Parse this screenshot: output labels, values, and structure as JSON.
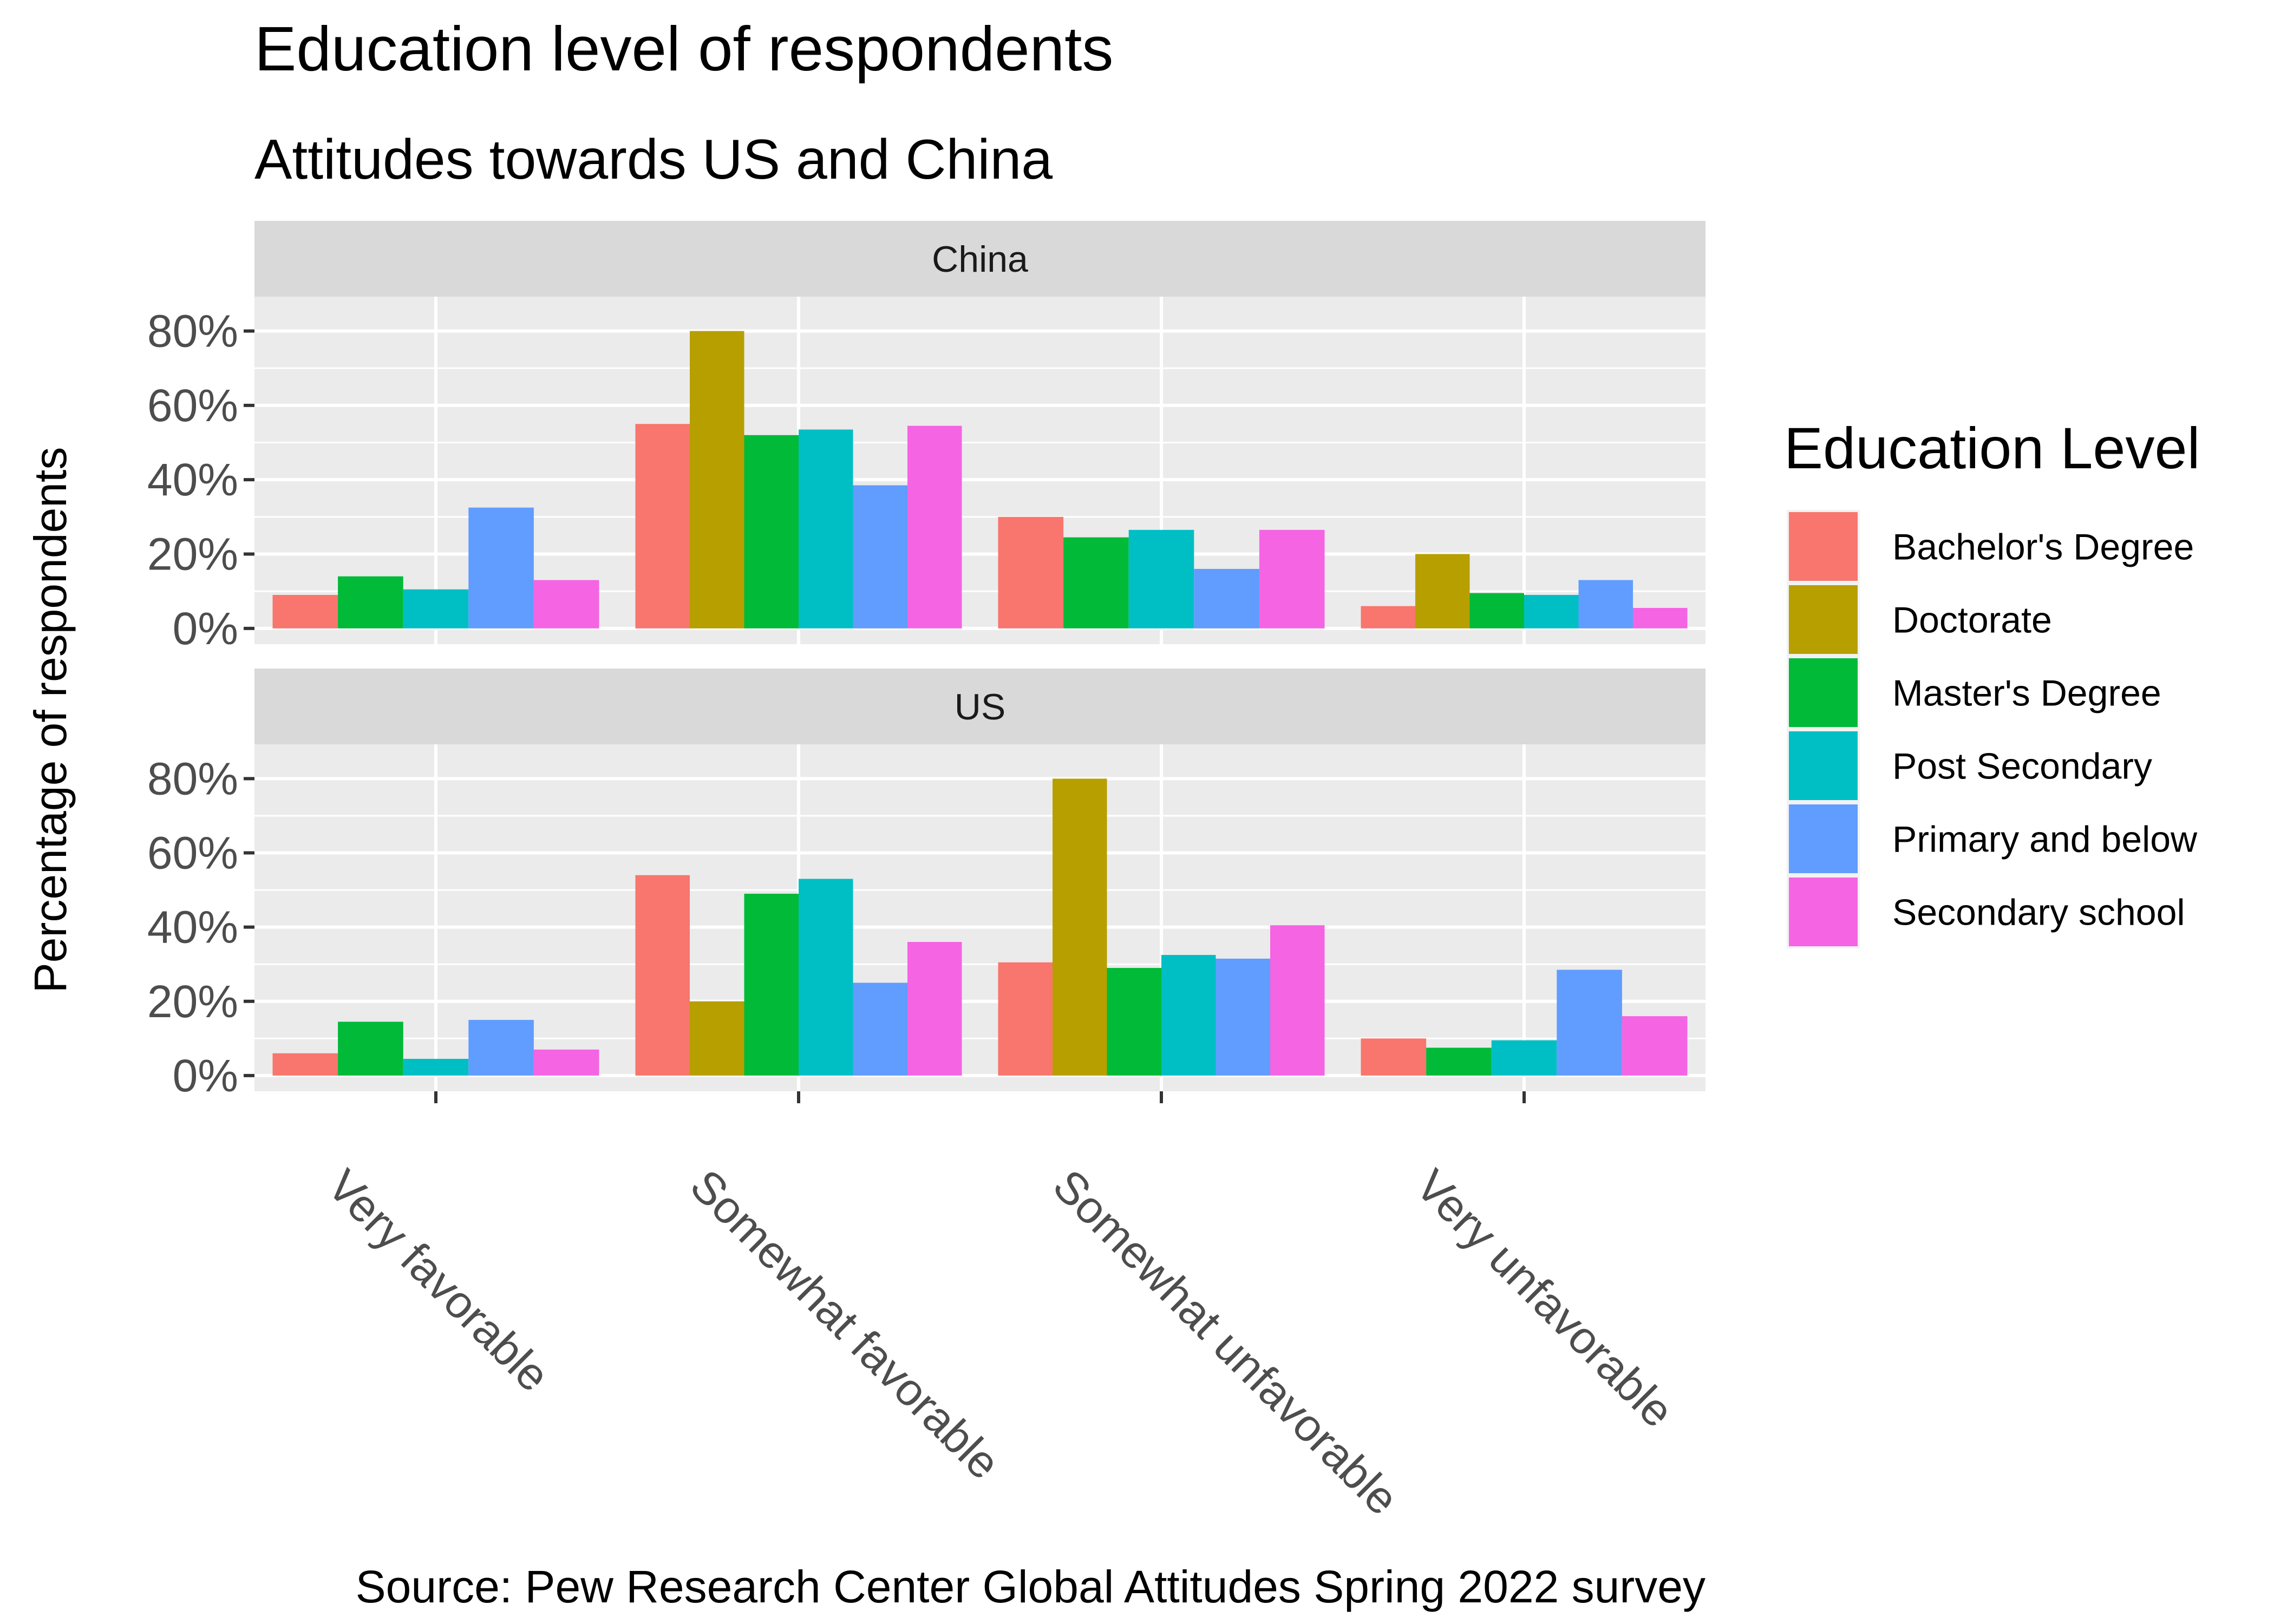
{
  "chart_data": {
    "type": "bar",
    "title": "Education level of respondents",
    "subtitle": "Attitudes towards US and China",
    "ylabel": "Percentage of respondents",
    "caption": "Source: Pew Research Center Global Attitudes Spring 2022 survey",
    "ylim": [
      0,
      0.85
    ],
    "yticks": [
      0,
      0.2,
      0.4,
      0.6,
      0.8
    ],
    "ytick_labels": [
      "0%",
      "20%",
      "40%",
      "60%",
      "80%"
    ],
    "grid": true,
    "legend_position": "right",
    "legend_title": "Education Level",
    "categories": [
      "Very favorable",
      "Somewhat favorable",
      "Somewhat unfavorable",
      "Very unfavorable"
    ],
    "series": [
      {
        "name": "Bachelor's Degree",
        "color": "#F8766D"
      },
      {
        "name": "Doctorate",
        "color": "#B79F00"
      },
      {
        "name": "Master's Degree",
        "color": "#00BA38"
      },
      {
        "name": "Post Secondary",
        "color": "#00BFC4"
      },
      {
        "name": "Primary and below",
        "color": "#619CFF"
      },
      {
        "name": "Secondary school",
        "color": "#F564E3"
      }
    ],
    "facets": [
      {
        "label": "China",
        "values": {
          "Very favorable": {
            "Bachelor's Degree": 0.09,
            "Master's Degree": 0.14,
            "Post Secondary": 0.105,
            "Primary and below": 0.325,
            "Secondary school": 0.13
          },
          "Somewhat favorable": {
            "Bachelor's Degree": 0.55,
            "Doctorate": 0.8,
            "Master's Degree": 0.52,
            "Post Secondary": 0.535,
            "Primary and below": 0.385,
            "Secondary school": 0.545
          },
          "Somewhat unfavorable": {
            "Bachelor's Degree": 0.3,
            "Master's Degree": 0.245,
            "Post Secondary": 0.265,
            "Primary and below": 0.16,
            "Secondary school": 0.265
          },
          "Very unfavorable": {
            "Bachelor's Degree": 0.06,
            "Doctorate": 0.2,
            "Master's Degree": 0.095,
            "Post Secondary": 0.09,
            "Primary and below": 0.13,
            "Secondary school": 0.055
          }
        }
      },
      {
        "label": "US",
        "values": {
          "Very favorable": {
            "Bachelor's Degree": 0.06,
            "Master's Degree": 0.145,
            "Post Secondary": 0.045,
            "Primary and below": 0.15,
            "Secondary school": 0.07
          },
          "Somewhat favorable": {
            "Bachelor's Degree": 0.54,
            "Doctorate": 0.2,
            "Master's Degree": 0.49,
            "Post Secondary": 0.53,
            "Primary and below": 0.25,
            "Secondary school": 0.36
          },
          "Somewhat unfavorable": {
            "Bachelor's Degree": 0.305,
            "Doctorate": 0.8,
            "Master's Degree": 0.29,
            "Post Secondary": 0.325,
            "Primary and below": 0.315,
            "Secondary school": 0.405
          },
          "Very unfavorable": {
            "Bachelor's Degree": 0.1,
            "Master's Degree": 0.075,
            "Post Secondary": 0.095,
            "Primary and below": 0.285,
            "Secondary school": 0.16
          }
        }
      }
    ]
  }
}
